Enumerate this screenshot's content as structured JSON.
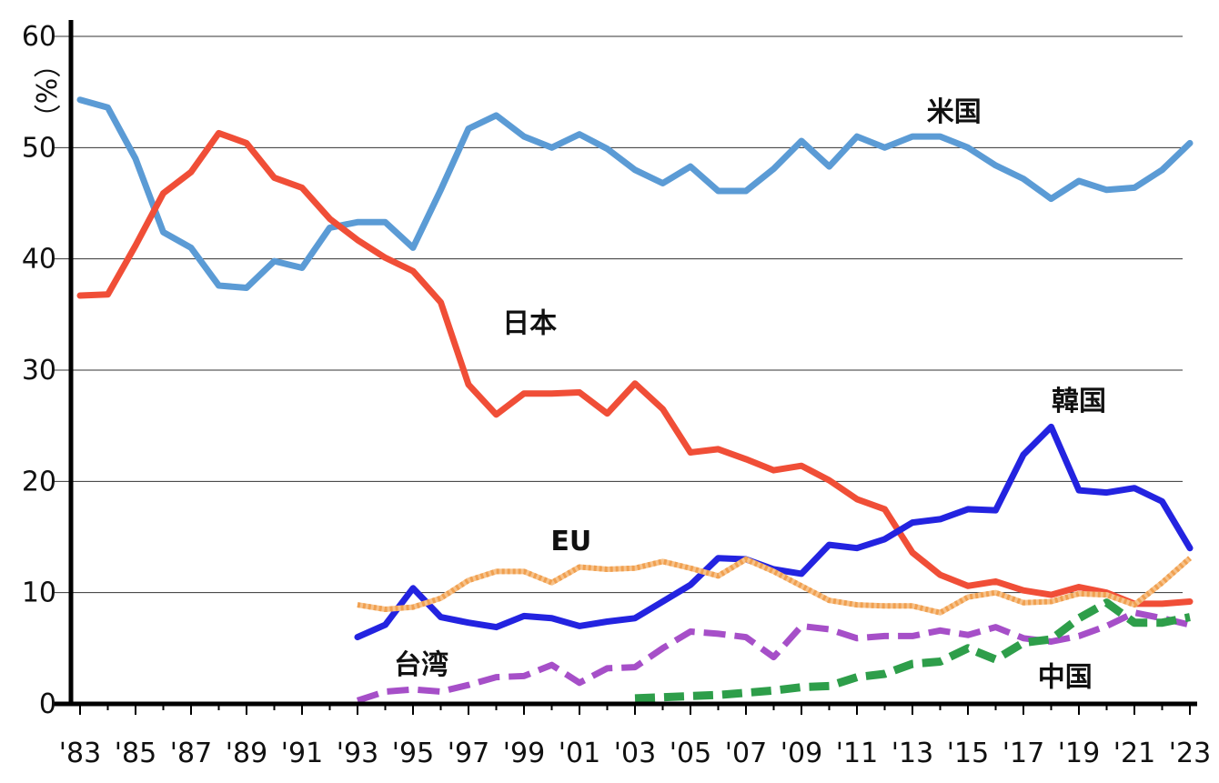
{
  "chart_data": {
    "type": "line",
    "title": "",
    "xlabel": "",
    "ylabel": "（%）",
    "ylim": [
      0,
      60
    ],
    "yticks": [
      "0",
      "10",
      "20",
      "30",
      "40",
      "50",
      "60"
    ],
    "grid": true,
    "x_tick_labels": [
      "'83",
      "'85",
      "'87",
      "'89",
      "'91",
      "'93",
      "'95",
      "'97",
      "'99",
      "'01",
      "'03",
      "'05",
      "'07",
      "'09",
      "'11",
      "'13",
      "'15",
      "'17",
      "'19",
      "'21",
      "'23"
    ],
    "series": [
      {
        "name": "米国",
        "color": "#5b9bd5",
        "dash": "solid",
        "x": [
          1983,
          1984,
          1985,
          1986,
          1987,
          1988,
          1989,
          1990,
          1991,
          1992,
          1993,
          1994,
          1995,
          1996,
          1997,
          1998,
          1999,
          2000,
          2001,
          2002,
          2003,
          2004,
          2005,
          2006,
          2007,
          2008,
          2009,
          2010,
          2011,
          2012,
          2013,
          2014,
          2015,
          2016,
          2017,
          2018,
          2019,
          2020,
          2021,
          2022,
          2023
        ],
        "values": [
          54.3,
          53.6,
          49.0,
          42.4,
          41.0,
          37.6,
          37.4,
          39.8,
          39.2,
          42.8,
          43.3,
          43.3,
          41.0,
          46.2,
          51.7,
          52.9,
          51.0,
          50.0,
          51.2,
          49.9,
          48.0,
          46.8,
          48.3,
          46.1,
          46.1,
          48.1,
          50.6,
          48.3,
          51.0,
          50.0,
          51.0,
          51.0,
          50.0,
          48.4,
          47.2,
          45.4,
          47.0,
          46.2,
          46.4,
          48.0,
          50.4
        ]
      },
      {
        "name": "日本",
        "color": "#f04e37",
        "dash": "solid",
        "x": [
          1983,
          1984,
          1985,
          1986,
          1987,
          1988,
          1989,
          1990,
          1991,
          1992,
          1993,
          1994,
          1995,
          1996,
          1997,
          1998,
          1999,
          2000,
          2001,
          2002,
          2003,
          2004,
          2005,
          2006,
          2007,
          2008,
          2009,
          2010,
          2011,
          2012,
          2013,
          2014,
          2015,
          2016,
          2017,
          2018,
          2019,
          2020,
          2021,
          2022,
          2023
        ],
        "values": [
          36.7,
          36.8,
          41.2,
          45.9,
          47.8,
          51.3,
          50.4,
          47.3,
          46.4,
          43.6,
          41.7,
          40.1,
          38.9,
          36.1,
          28.7,
          26.0,
          27.9,
          27.9,
          28.0,
          26.1,
          28.8,
          26.5,
          22.6,
          22.9,
          22.0,
          21.0,
          21.4,
          20.1,
          18.4,
          17.5,
          13.6,
          11.6,
          10.6,
          11.0,
          10.2,
          9.8,
          10.5,
          10.0,
          9.0,
          9.0,
          9.2
        ]
      },
      {
        "name": "韓国",
        "color": "#2323e0",
        "dash": "solid",
        "x": [
          1993,
          1994,
          1995,
          1996,
          1997,
          1998,
          1999,
          2000,
          2001,
          2002,
          2003,
          2004,
          2005,
          2006,
          2007,
          2008,
          2009,
          2010,
          2011,
          2012,
          2013,
          2014,
          2015,
          2016,
          2017,
          2018,
          2019,
          2020,
          2021,
          2022,
          2023
        ],
        "values": [
          6.0,
          7.1,
          10.4,
          7.8,
          7.3,
          6.9,
          7.9,
          7.7,
          7.0,
          7.4,
          7.7,
          9.2,
          10.7,
          13.1,
          13.0,
          12.1,
          11.7,
          14.3,
          14.0,
          14.8,
          16.3,
          16.6,
          17.5,
          17.4,
          22.4,
          24.9,
          19.2,
          19.0,
          19.4,
          18.2,
          14.0
        ]
      },
      {
        "name": "EU",
        "color": "#f0a050",
        "dash": "dotted",
        "x": [
          1993,
          1994,
          1995,
          1996,
          1997,
          1998,
          1999,
          2000,
          2001,
          2002,
          2003,
          2004,
          2005,
          2006,
          2007,
          2008,
          2009,
          2010,
          2011,
          2012,
          2013,
          2014,
          2015,
          2016,
          2017,
          2018,
          2019,
          2020,
          2021,
          2022,
          2023
        ],
        "values": [
          8.9,
          8.5,
          8.7,
          9.5,
          11.1,
          11.9,
          11.9,
          10.9,
          12.3,
          12.1,
          12.2,
          12.8,
          12.2,
          11.5,
          13.0,
          11.9,
          10.6,
          9.3,
          8.9,
          8.8,
          8.8,
          8.2,
          9.6,
          10.0,
          9.1,
          9.2,
          9.9,
          9.8,
          8.9,
          10.9,
          13.1
        ]
      },
      {
        "name": "台湾",
        "color": "#a64fc8",
        "dash": "dashed",
        "x": [
          1993,
          1994,
          1995,
          1996,
          1997,
          1998,
          1999,
          2000,
          2001,
          2002,
          2003,
          2004,
          2005,
          2006,
          2007,
          2008,
          2009,
          2010,
          2011,
          2012,
          2013,
          2014,
          2015,
          2016,
          2017,
          2018,
          2019,
          2020,
          2021,
          2022,
          2023
        ],
        "values": [
          0.3,
          1.1,
          1.3,
          1.1,
          1.7,
          2.4,
          2.5,
          3.5,
          1.9,
          3.2,
          3.3,
          5.0,
          6.5,
          6.3,
          6.0,
          4.2,
          7.0,
          6.7,
          5.9,
          6.1,
          6.1,
          6.6,
          6.2,
          6.9,
          5.9,
          5.6,
          6.1,
          7.0,
          8.2,
          7.7,
          7.1
        ]
      },
      {
        "name": "中国",
        "color": "#2e9e4a",
        "dash": "dashed",
        "x": [
          2003,
          2004,
          2005,
          2006,
          2007,
          2008,
          2009,
          2010,
          2011,
          2012,
          2013,
          2014,
          2015,
          2016,
          2017,
          2018,
          2019,
          2020,
          2021,
          2022,
          2023
        ],
        "values": [
          0.5,
          0.6,
          0.7,
          0.8,
          1.0,
          1.2,
          1.5,
          1.6,
          2.4,
          2.7,
          3.6,
          3.8,
          5.0,
          4.0,
          5.5,
          5.8,
          7.7,
          9.1,
          7.3,
          7.3,
          7.8
        ]
      }
    ]
  }
}
